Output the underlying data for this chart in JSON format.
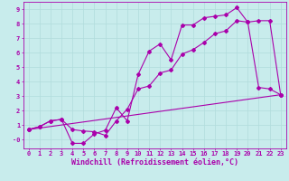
{
  "xlabel": "Windchill (Refroidissement éolien,°C)",
  "xlim": [
    -0.5,
    23.5
  ],
  "ylim": [
    -0.6,
    9.5
  ],
  "xticks": [
    0,
    1,
    2,
    3,
    4,
    5,
    6,
    7,
    8,
    9,
    10,
    11,
    12,
    13,
    14,
    15,
    16,
    17,
    18,
    19,
    20,
    21,
    22,
    23
  ],
  "yticks": [
    0,
    1,
    2,
    3,
    4,
    5,
    6,
    7,
    8,
    9
  ],
  "ytick_labels": [
    "-0",
    "1",
    "2",
    "3",
    "4",
    "5",
    "6",
    "7",
    "8",
    "9"
  ],
  "bg_color": "#c8ecec",
  "line_color": "#aa00aa",
  "grid_color": "#b0dcdc",
  "line1_x": [
    0,
    1,
    2,
    3,
    4,
    5,
    6,
    7,
    8,
    9,
    10,
    11,
    12,
    13,
    14,
    15,
    16,
    17,
    18,
    19,
    20,
    21,
    22,
    23
  ],
  "line1_y": [
    0.7,
    0.9,
    1.3,
    1.4,
    0.7,
    0.6,
    0.55,
    0.3,
    1.3,
    2.1,
    3.5,
    3.7,
    4.6,
    4.8,
    5.9,
    6.2,
    6.7,
    7.3,
    7.5,
    8.2,
    8.1,
    8.2,
    8.2,
    3.1
  ],
  "line2_x": [
    0,
    1,
    2,
    3,
    4,
    5,
    6,
    7,
    8,
    9,
    10,
    11,
    12,
    13,
    14,
    15,
    16,
    17,
    18,
    19,
    20,
    21,
    22,
    23
  ],
  "line2_y": [
    0.7,
    0.9,
    1.3,
    1.4,
    -0.25,
    -0.25,
    0.4,
    0.65,
    2.2,
    1.3,
    4.5,
    6.1,
    6.6,
    5.5,
    7.9,
    7.9,
    8.4,
    8.5,
    8.6,
    9.1,
    8.1,
    3.6,
    3.5,
    3.1
  ],
  "line3_x": [
    0,
    23
  ],
  "line3_y": [
    0.7,
    3.1
  ],
  "marker_size": 2.0,
  "line_width": 0.8,
  "font_size_tick": 5.0,
  "font_size_xlabel": 6.0
}
